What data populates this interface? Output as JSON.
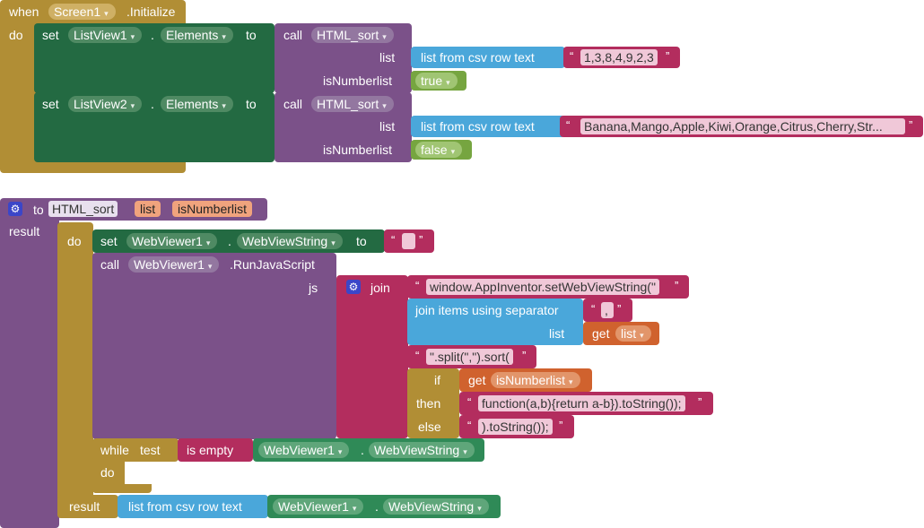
{
  "top": {
    "when_label": "when",
    "component": "Screen1",
    "event": ".Initialize",
    "do_label": "do",
    "set1": {
      "set_label": "set",
      "component": "ListView1",
      "dot": ".",
      "property": "Elements",
      "to_label": "to",
      "call_label": "call",
      "procedure": "HTML_sort",
      "list_label": "list",
      "csv_label": "list from csv row  text",
      "csv_value": "1,3,8,4,9,2,3",
      "isnum_label": "isNumberlist",
      "isnum_value": "true"
    },
    "set2": {
      "set_label": "set",
      "component": "ListView2",
      "dot": ".",
      "property": "Elements",
      "to_label": "to",
      "call_label": "call",
      "procedure": "HTML_sort",
      "list_label": "list",
      "csv_label": "list from csv row  text",
      "csv_value": "Banana,Mango,Apple,Kiwi,Orange,Citrus,Cherry,Str...",
      "isnum_label": "isNumberlist",
      "isnum_value": "false"
    }
  },
  "proc": {
    "to_label": "to",
    "name": "HTML_sort",
    "param1": "list",
    "param2": "isNumberlist",
    "result_label": "result",
    "do_label": "do",
    "set_label": "set",
    "wv_component": "WebViewer1",
    "dot": ".",
    "wv_property": "WebViewString",
    "to2_label": "to",
    "call_label": "call",
    "run_js": ".RunJavaScript",
    "js_label": "js",
    "join_label": "join",
    "str1": "window.AppInventor.setWebViewString(\"",
    "join_items_label": "join items using separator",
    "sep_value": ",",
    "list_label": "list",
    "get_label": "get",
    "get_var": "list",
    "str2": "\".split(\",\").sort(",
    "if_label": "if",
    "get2_var": "isNumberlist",
    "then_label": "then",
    "str3": "function(a,b){return a-b}).toString());",
    "else_label": "else",
    "str4": ").toString());",
    "while_label": "while",
    "test_label": "test",
    "isempty_label": "is empty",
    "do2_label": "do",
    "result2_label": "result",
    "csv_label": "list from csv row  text",
    "quote_open": "“",
    "quote_close": "”",
    "dropdown_arrow": "▾"
  }
}
